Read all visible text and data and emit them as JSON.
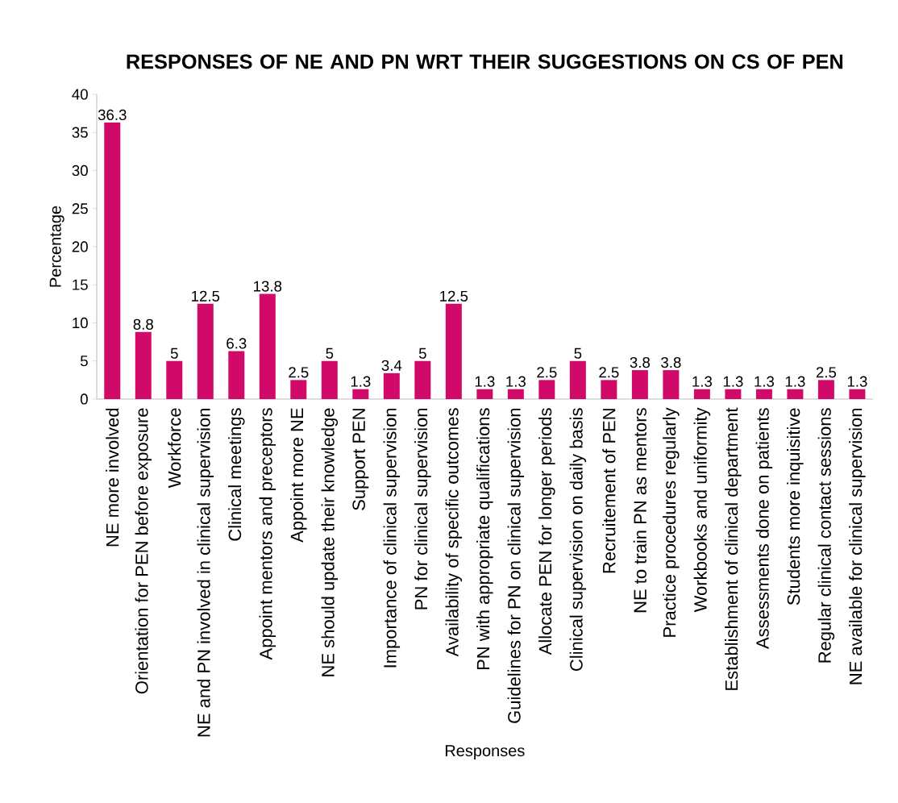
{
  "chart_data": {
    "type": "bar",
    "title": "RESPONSES OF NE AND PN WRT THEIR SUGGESTIONS ON CS OF PEN",
    "xlabel": "Responses",
    "ylabel": "Percentage",
    "categories": [
      "NE more involved",
      "Orientation for PEN before exposure",
      "Workforce",
      "NE and PN involved in clinical supervision",
      "Clinical meetings",
      "Appoint mentors and preceptors",
      "Appoint more NE",
      "NE should update their knowledge",
      "Support PEN",
      "Importance of clinical supervision",
      "PN for clinical supervision",
      "Availability of specific outcomes",
      "PN with appropriate qualifications",
      "Guidelines for PN on clinical supervision",
      "Allocate PEN for longer periods",
      "Clinical supervision on daily basis",
      "Recruitement of PEN",
      "NE to train PN as mentors",
      "Practice procedures regularly",
      "Workbooks and uniformity",
      "Establishment of clinical department",
      "Assessments done on patients",
      "Students more inquisitive",
      "Regular clinical contact sessions",
      "NE available for clinical supervision"
    ],
    "values": [
      36.3,
      8.8,
      5,
      12.5,
      6.3,
      13.8,
      2.5,
      5,
      1.3,
      3.4,
      5,
      12.5,
      1.3,
      1.3,
      2.5,
      5,
      2.5,
      3.8,
      3.8,
      1.3,
      1.3,
      1.3,
      1.3,
      2.5,
      1.3
    ],
    "color": "#d10a6a",
    "ylim": [
      0,
      40
    ],
    "yticks": [
      0,
      5,
      10,
      15,
      20,
      25,
      30,
      35,
      40
    ],
    "data_labels": true,
    "grid": false
  }
}
